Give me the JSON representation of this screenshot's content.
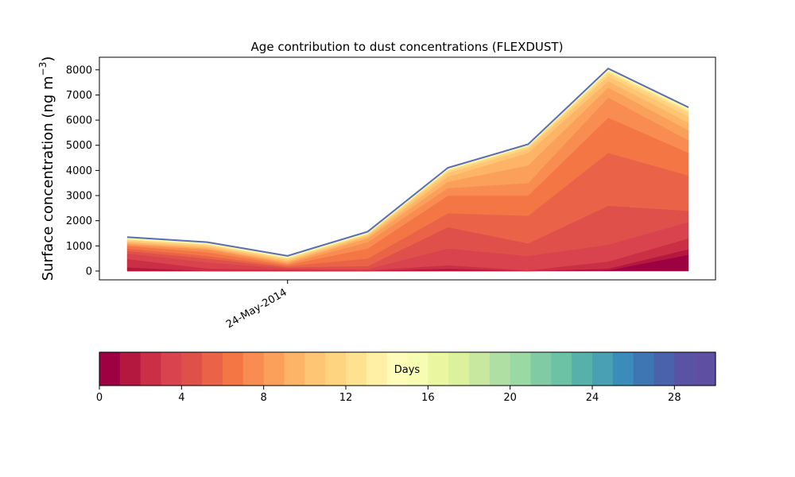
{
  "chart_data": {
    "type": "area",
    "title": "Age contribution to dust concentrations (FLEXDUST)",
    "ylabel": "Surface concentration (ng m",
    "ylabel_sup": "−3",
    "ylabel_close": ")",
    "xlabel": "",
    "ylim": [
      -350,
      8500
    ],
    "yticks": [
      0,
      1000,
      2000,
      3000,
      4000,
      5000,
      6000,
      7000,
      8000
    ],
    "x_tick_label": "24-May-2014",
    "x_tick_index": 2,
    "x_points": 8,
    "grid": false,
    "days_per_layer": 1,
    "cumulative_boundaries": [
      [
        0,
        0,
        0,
        0,
        0,
        0,
        0,
        0
      ],
      [
        0,
        0,
        0,
        0,
        0,
        0,
        30,
        650
      ],
      [
        150,
        0,
        0,
        0,
        100,
        0,
        100,
        870
      ],
      [
        480,
        100,
        50,
        30,
        230,
        30,
        380,
        1300
      ],
      [
        700,
        350,
        100,
        80,
        900,
        600,
        1050,
        1950
      ],
      [
        800,
        500,
        150,
        200,
        1750,
        1100,
        2600,
        2400
      ],
      [
        900,
        600,
        200,
        500,
        2300,
        2200,
        4700,
        3800
      ],
      [
        1000,
        750,
        250,
        900,
        3000,
        3000,
        6100,
        4700
      ],
      [
        1050,
        850,
        300,
        1150,
        3300,
        3500,
        6900,
        5200
      ],
      [
        1100,
        900,
        350,
        1300,
        3550,
        4200,
        7300,
        5600
      ],
      [
        1150,
        950,
        400,
        1380,
        3750,
        4700,
        7550,
        5900
      ],
      [
        1200,
        1000,
        450,
        1430,
        3900,
        4850,
        7750,
        6150
      ],
      [
        1240,
        1040,
        490,
        1460,
        3980,
        4930,
        7870,
        6300
      ],
      [
        1270,
        1070,
        520,
        1490,
        4020,
        4970,
        7940,
        6380
      ],
      [
        1290,
        1090,
        545,
        1510,
        4050,
        4990,
        7980,
        6430
      ],
      [
        1305,
        1105,
        560,
        1525,
        4065,
        5005,
        8000,
        6460
      ],
      [
        1315,
        1115,
        570,
        1535,
        4075,
        5012,
        8015,
        6475
      ],
      [
        1325,
        1125,
        580,
        1545,
        4085,
        5018,
        8025,
        6485
      ],
      [
        1330,
        1130,
        585,
        1550,
        4090,
        5022,
        8032,
        6490
      ],
      [
        1333,
        1133,
        588,
        1553,
        4093,
        5025,
        8036,
        6494
      ],
      [
        1335,
        1135,
        590,
        1555,
        4095,
        5027,
        8039,
        6496
      ],
      [
        1337,
        1137,
        592,
        1557,
        4097,
        5029,
        8041,
        6498
      ],
      [
        1339,
        1139,
        594,
        1559,
        4099,
        5031,
        8043,
        6500
      ],
      [
        1341,
        1141,
        596,
        1561,
        4101,
        5033,
        8045,
        6502
      ],
      [
        1342,
        1142,
        597,
        1562,
        4102,
        5034,
        8046,
        6503
      ],
      [
        1343,
        1143,
        598,
        1563,
        4103,
        5035,
        8047,
        6504
      ],
      [
        1344,
        1144,
        599,
        1564,
        4104,
        5036,
        8048,
        6505
      ],
      [
        1345,
        1145,
        600,
        1565,
        4105,
        5037,
        8049,
        6506
      ],
      [
        1346,
        1146,
        601,
        1566,
        4106,
        5038,
        8050,
        6507
      ],
      [
        1347,
        1147,
        602,
        1567,
        4107,
        5039,
        8051,
        6508
      ],
      [
        1348,
        1148,
        603,
        1568,
        4108,
        5040,
        8052,
        6509
      ]
    ],
    "colorbar": {
      "label": "Days",
      "min": 0,
      "max": 30,
      "ticks": [
        0,
        4,
        8,
        12,
        16,
        20,
        24,
        28
      ],
      "colors": [
        "#9e0142",
        "#b5183f",
        "#cb2f45",
        "#d8434e",
        "#e0504a",
        "#ea6349",
        "#f47645",
        "#f88c51",
        "#fba05b",
        "#fdb466",
        "#fec574",
        "#fed481",
        "#fee28f",
        "#fff0a6",
        "#fffbb8",
        "#f7fcb3",
        "#ebf7a0",
        "#dcf19c",
        "#c8e89f",
        "#b0dfa3",
        "#9ad8a4",
        "#80cba4",
        "#6cc2a5",
        "#57b0aa",
        "#48a0b2",
        "#3b8cbb",
        "#3e76b4",
        "#4a61ac",
        "#5a52a4",
        "#5e4fa2"
      ]
    }
  }
}
